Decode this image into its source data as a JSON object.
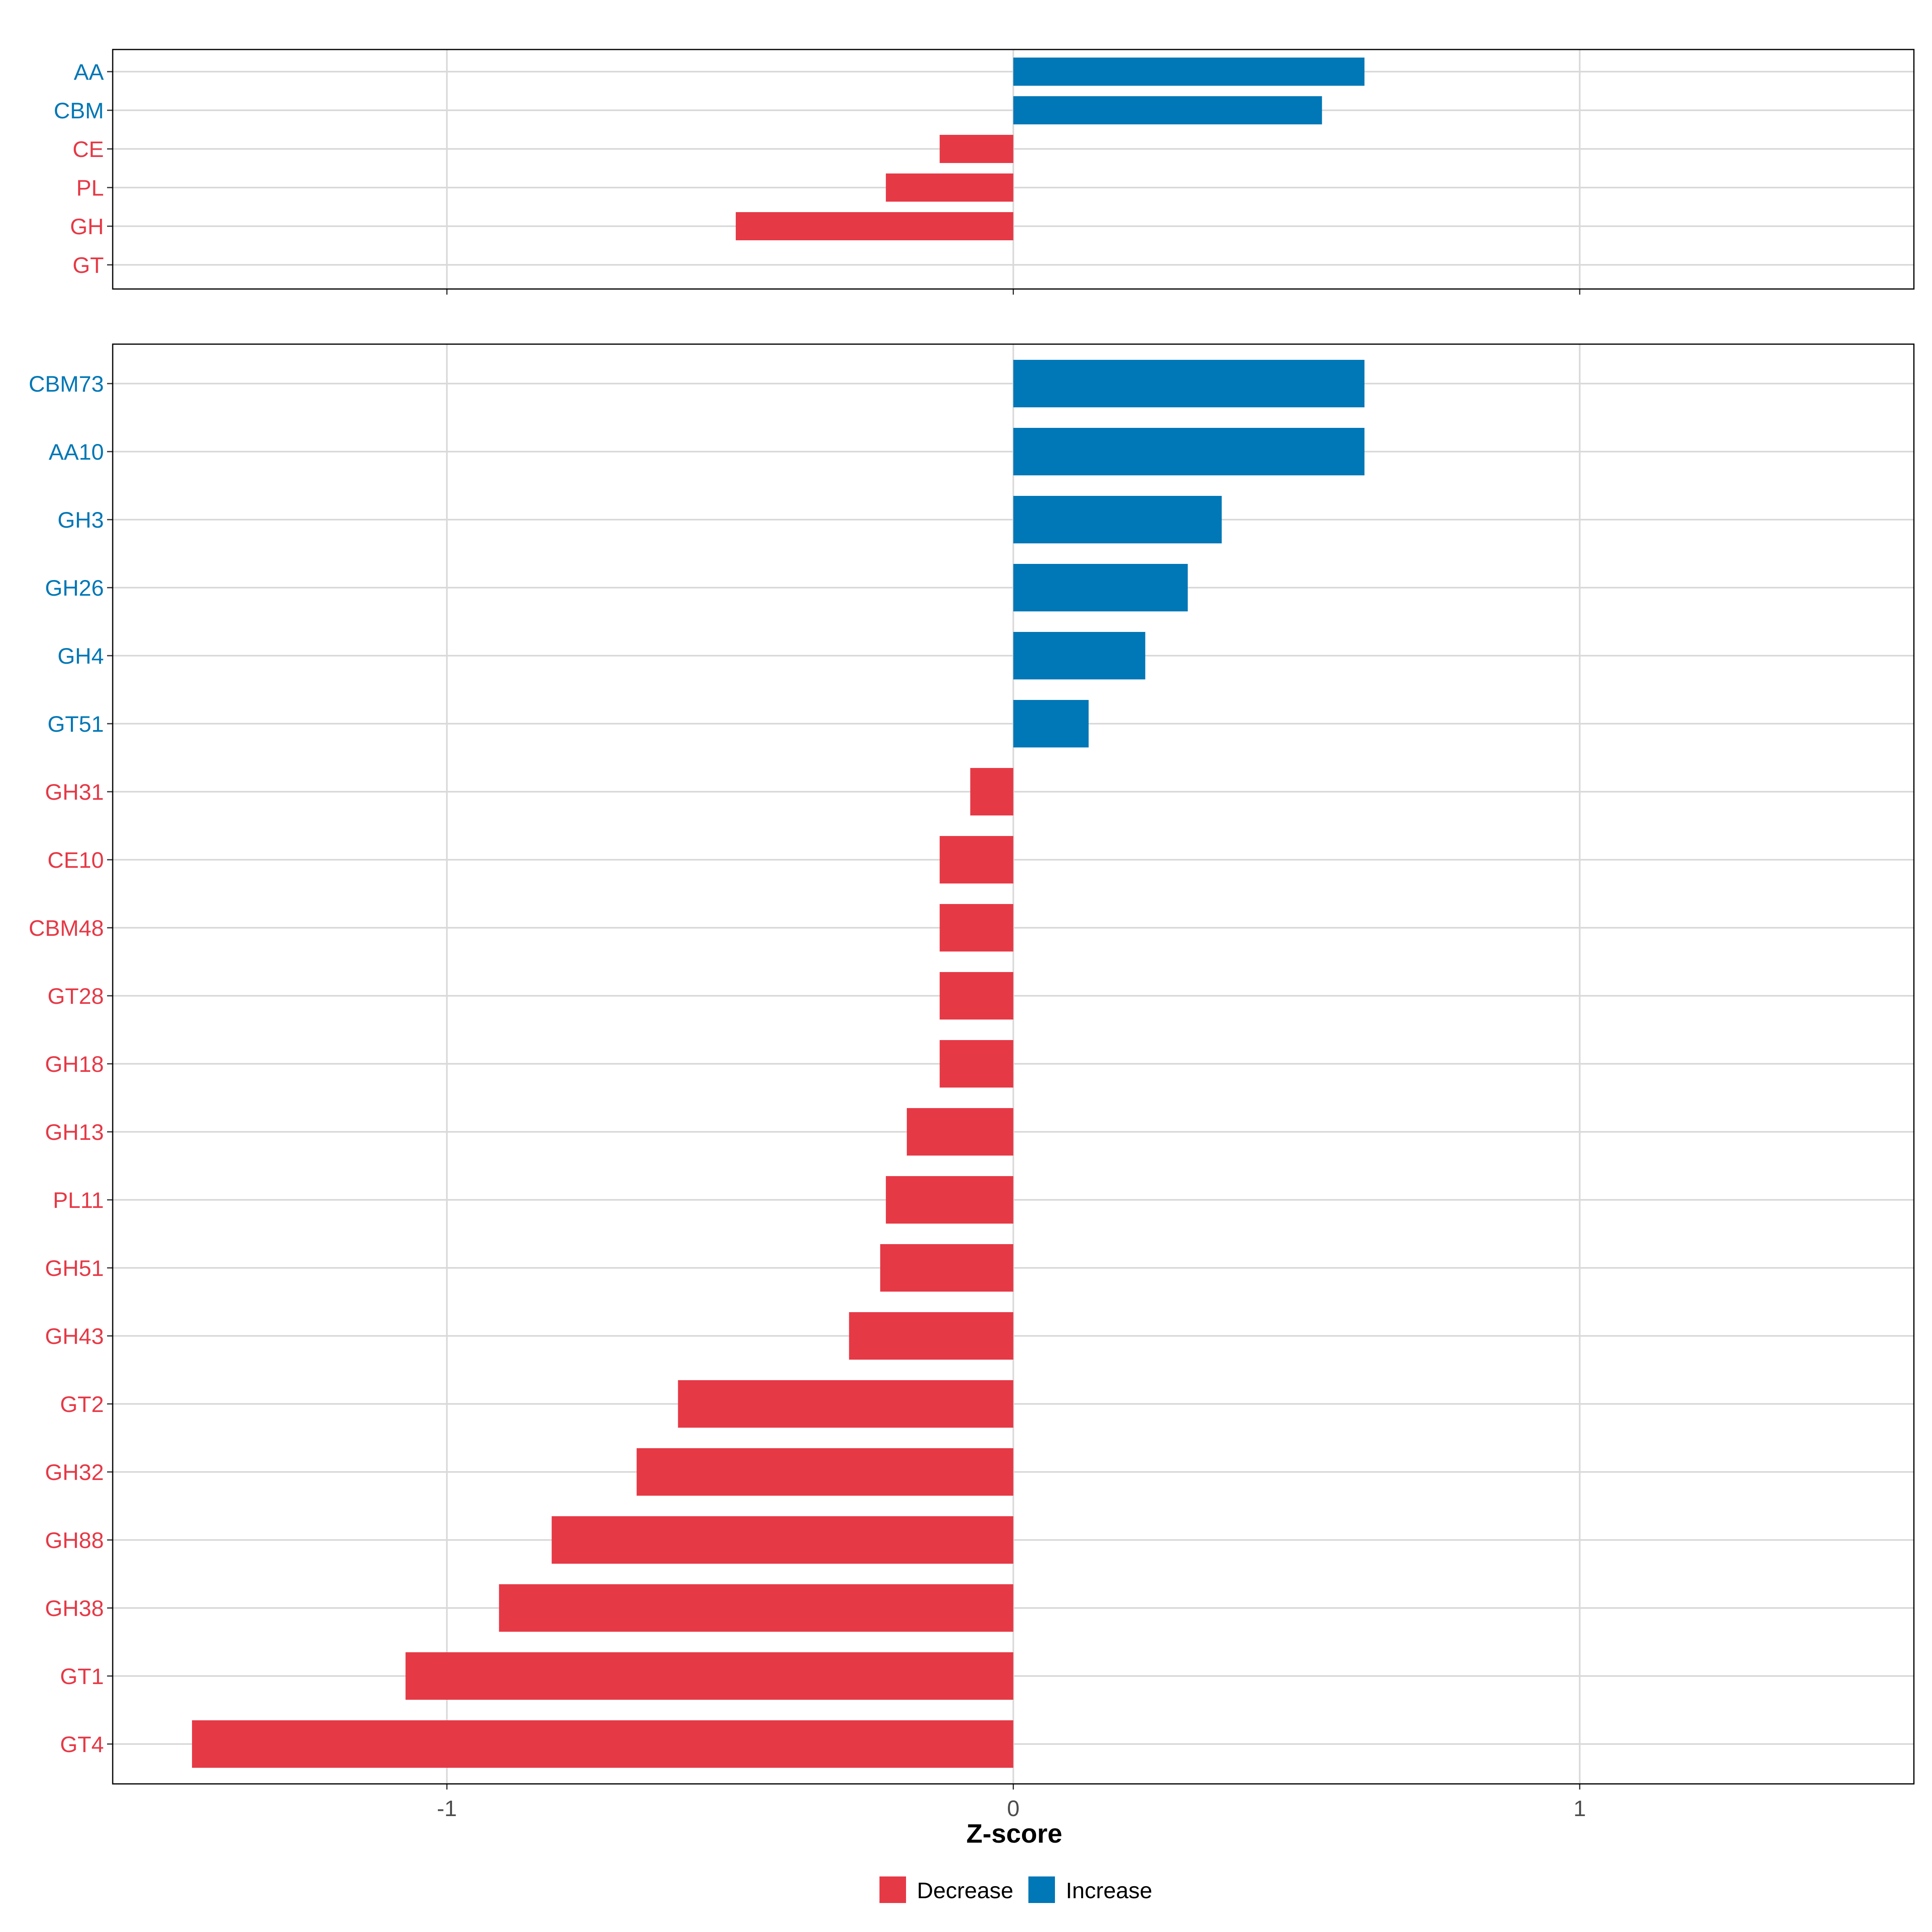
{
  "colors": {
    "decrease": "#e63946",
    "increase": "#0077b6",
    "grid": "#d9d9d9",
    "zero_line": "#d9d9d9",
    "panel_border": "#000000",
    "axis_text": "#4d4d4d"
  },
  "chart_data": [
    {
      "type": "bar",
      "orientation": "horizontal",
      "panel": "top",
      "xlim": [
        -1.59,
        1.59
      ],
      "x_ticks": [
        -1,
        0,
        1
      ],
      "categories": [
        "AA",
        "CBM",
        "CE",
        "PL",
        "GH",
        "GT"
      ],
      "values": [
        0.62,
        0.545,
        -0.13,
        -0.225,
        -0.49,
        0
      ],
      "directions": [
        "Increase",
        "Increase",
        "Decrease",
        "Decrease",
        "Decrease",
        "Decrease"
      ]
    },
    {
      "type": "bar",
      "orientation": "horizontal",
      "panel": "bottom",
      "xlim": [
        -1.59,
        1.59
      ],
      "x_ticks": [
        -1,
        0,
        1
      ],
      "x_tick_labels": [
        "-1",
        "0",
        "1"
      ],
      "xlabel": "Z-score",
      "categories": [
        "CBM73",
        "AA10",
        "GH3",
        "GH26",
        "GH4",
        "GT51",
        "GH31",
        "CE10",
        "CBM48",
        "GT28",
        "GH18",
        "GH13",
        "PL11",
        "GH51",
        "GH43",
        "GT2",
        "GH32",
        "GH88",
        "GH38",
        "GT1",
        "GT4"
      ],
      "values": [
        0.62,
        0.62,
        0.368,
        0.308,
        0.233,
        0.133,
        -0.076,
        -0.13,
        -0.13,
        -0.13,
        -0.13,
        -0.188,
        -0.225,
        -0.235,
        -0.29,
        -0.592,
        -0.665,
        -0.815,
        -0.908,
        -1.073,
        -1.45
      ],
      "directions": [
        "Increase",
        "Increase",
        "Increase",
        "Increase",
        "Increase",
        "Increase",
        "Decrease",
        "Decrease",
        "Decrease",
        "Decrease",
        "Decrease",
        "Decrease",
        "Decrease",
        "Decrease",
        "Decrease",
        "Decrease",
        "Decrease",
        "Decrease",
        "Decrease",
        "Decrease",
        "Decrease"
      ]
    }
  ],
  "legend": {
    "position": "bottom",
    "items": [
      {
        "label": "Decrease",
        "key": "decrease"
      },
      {
        "label": "Increase",
        "key": "increase"
      }
    ]
  }
}
